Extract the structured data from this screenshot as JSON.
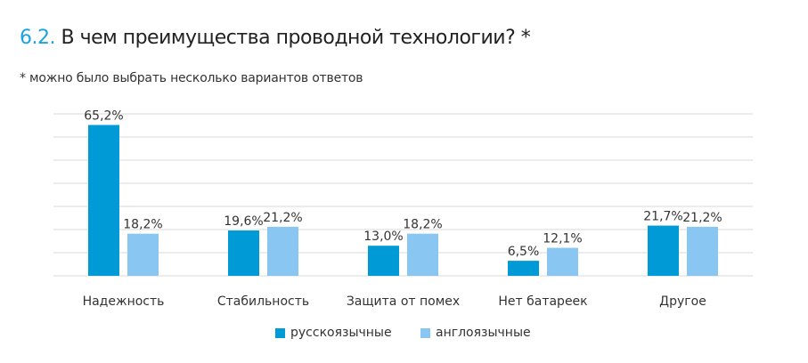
{
  "title": {
    "number": "6.2.",
    "text": "В чем преимущества проводной технологии? *"
  },
  "subtitle": "* можно было выбрать несколько вариантов ответов",
  "chart_data": {
    "type": "bar",
    "categories": [
      "Надежность",
      "Стабильность",
      "Защита от помех",
      "Нет батареек",
      "Другое"
    ],
    "series": [
      {
        "name": "русскоязычные",
        "values": [
          65.2,
          19.6,
          13.0,
          6.5,
          21.7
        ],
        "labels": [
          "65,2%",
          "19,6%",
          "13,0%",
          "6,5%",
          "21,7%"
        ],
        "color": "#009ad6"
      },
      {
        "name": "англоязычные",
        "values": [
          18.2,
          21.2,
          18.2,
          12.1,
          21.2
        ],
        "labels": [
          "18,2%",
          "21,2%",
          "18,2%",
          "12,1%",
          "21,2%"
        ],
        "color": "#89c6f2"
      }
    ],
    "ylim": [
      0,
      70
    ],
    "grid": true,
    "legend": "bottom"
  }
}
